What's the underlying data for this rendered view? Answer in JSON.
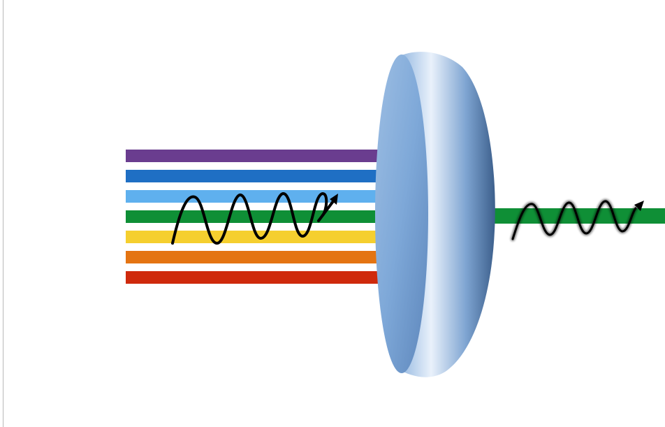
{
  "diagram": {
    "input_beam": {
      "bands": [
        {
          "name": "violet",
          "color": "#6a3d8f"
        },
        {
          "name": "blue",
          "color": "#1f6fc4"
        },
        {
          "name": "light-blue",
          "color": "#5fb0ee"
        },
        {
          "name": "green",
          "color": "#0f8f36"
        },
        {
          "name": "yellow",
          "color": "#f5cf2f"
        },
        {
          "name": "orange",
          "color": "#e47412"
        },
        {
          "name": "red",
          "color": "#cf2a0c"
        }
      ],
      "wave": {
        "color": "#000000",
        "icon": "wave-arrow-icon"
      }
    },
    "filter": {
      "face_color": "#7ea8d8",
      "rim_highlight": "#e9f1fb",
      "rim_shadow": "#3c5f8c",
      "icon": "filter-disk-icon"
    },
    "output_beam": {
      "color": "#0f8f36",
      "wave": {
        "color": "#000000",
        "icon": "wave-arrow-icon"
      }
    }
  }
}
